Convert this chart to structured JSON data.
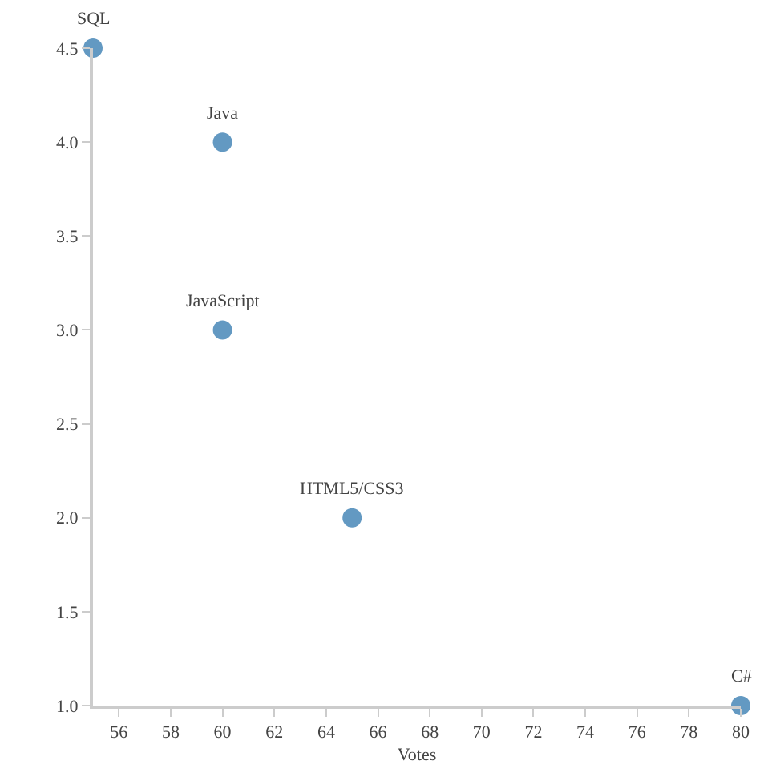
{
  "chart_data": {
    "type": "scatter",
    "xlabel": "Votes",
    "x": [
      55,
      60,
      60,
      65,
      80
    ],
    "values": [
      4.5,
      4.0,
      3.0,
      2.0,
      1.0
    ],
    "color": "#6399c2",
    "marker": "circle",
    "xlim": [
      55,
      80
    ],
    "xticks": [
      56,
      58,
      60,
      62,
      64,
      66,
      68,
      70,
      72,
      74,
      76,
      78,
      80
    ],
    "ylim": [
      1.0,
      4.5
    ],
    "yticks": [
      {
        "value": 1,
        "label": "1.0"
      },
      1.5,
      {
        "value": 2,
        "label": "2.0"
      },
      2.5,
      {
        "value": 3,
        "label": "3.0"
      },
      3.5,
      {
        "value": 4,
        "label": "4.0"
      },
      4.5
    ],
    "annotations": [
      {
        "text": "SQL",
        "x": 55,
        "y": 4.5
      },
      {
        "text": "Java",
        "x": 60,
        "y": 4.0
      },
      {
        "text": "JavaScript",
        "x": 60,
        "y": 3.0
      },
      {
        "text": "HTML5/CSS3",
        "x": 65,
        "y": 2.0
      },
      {
        "text": "C#",
        "x": 80,
        "y": 1.0
      }
    ]
  }
}
